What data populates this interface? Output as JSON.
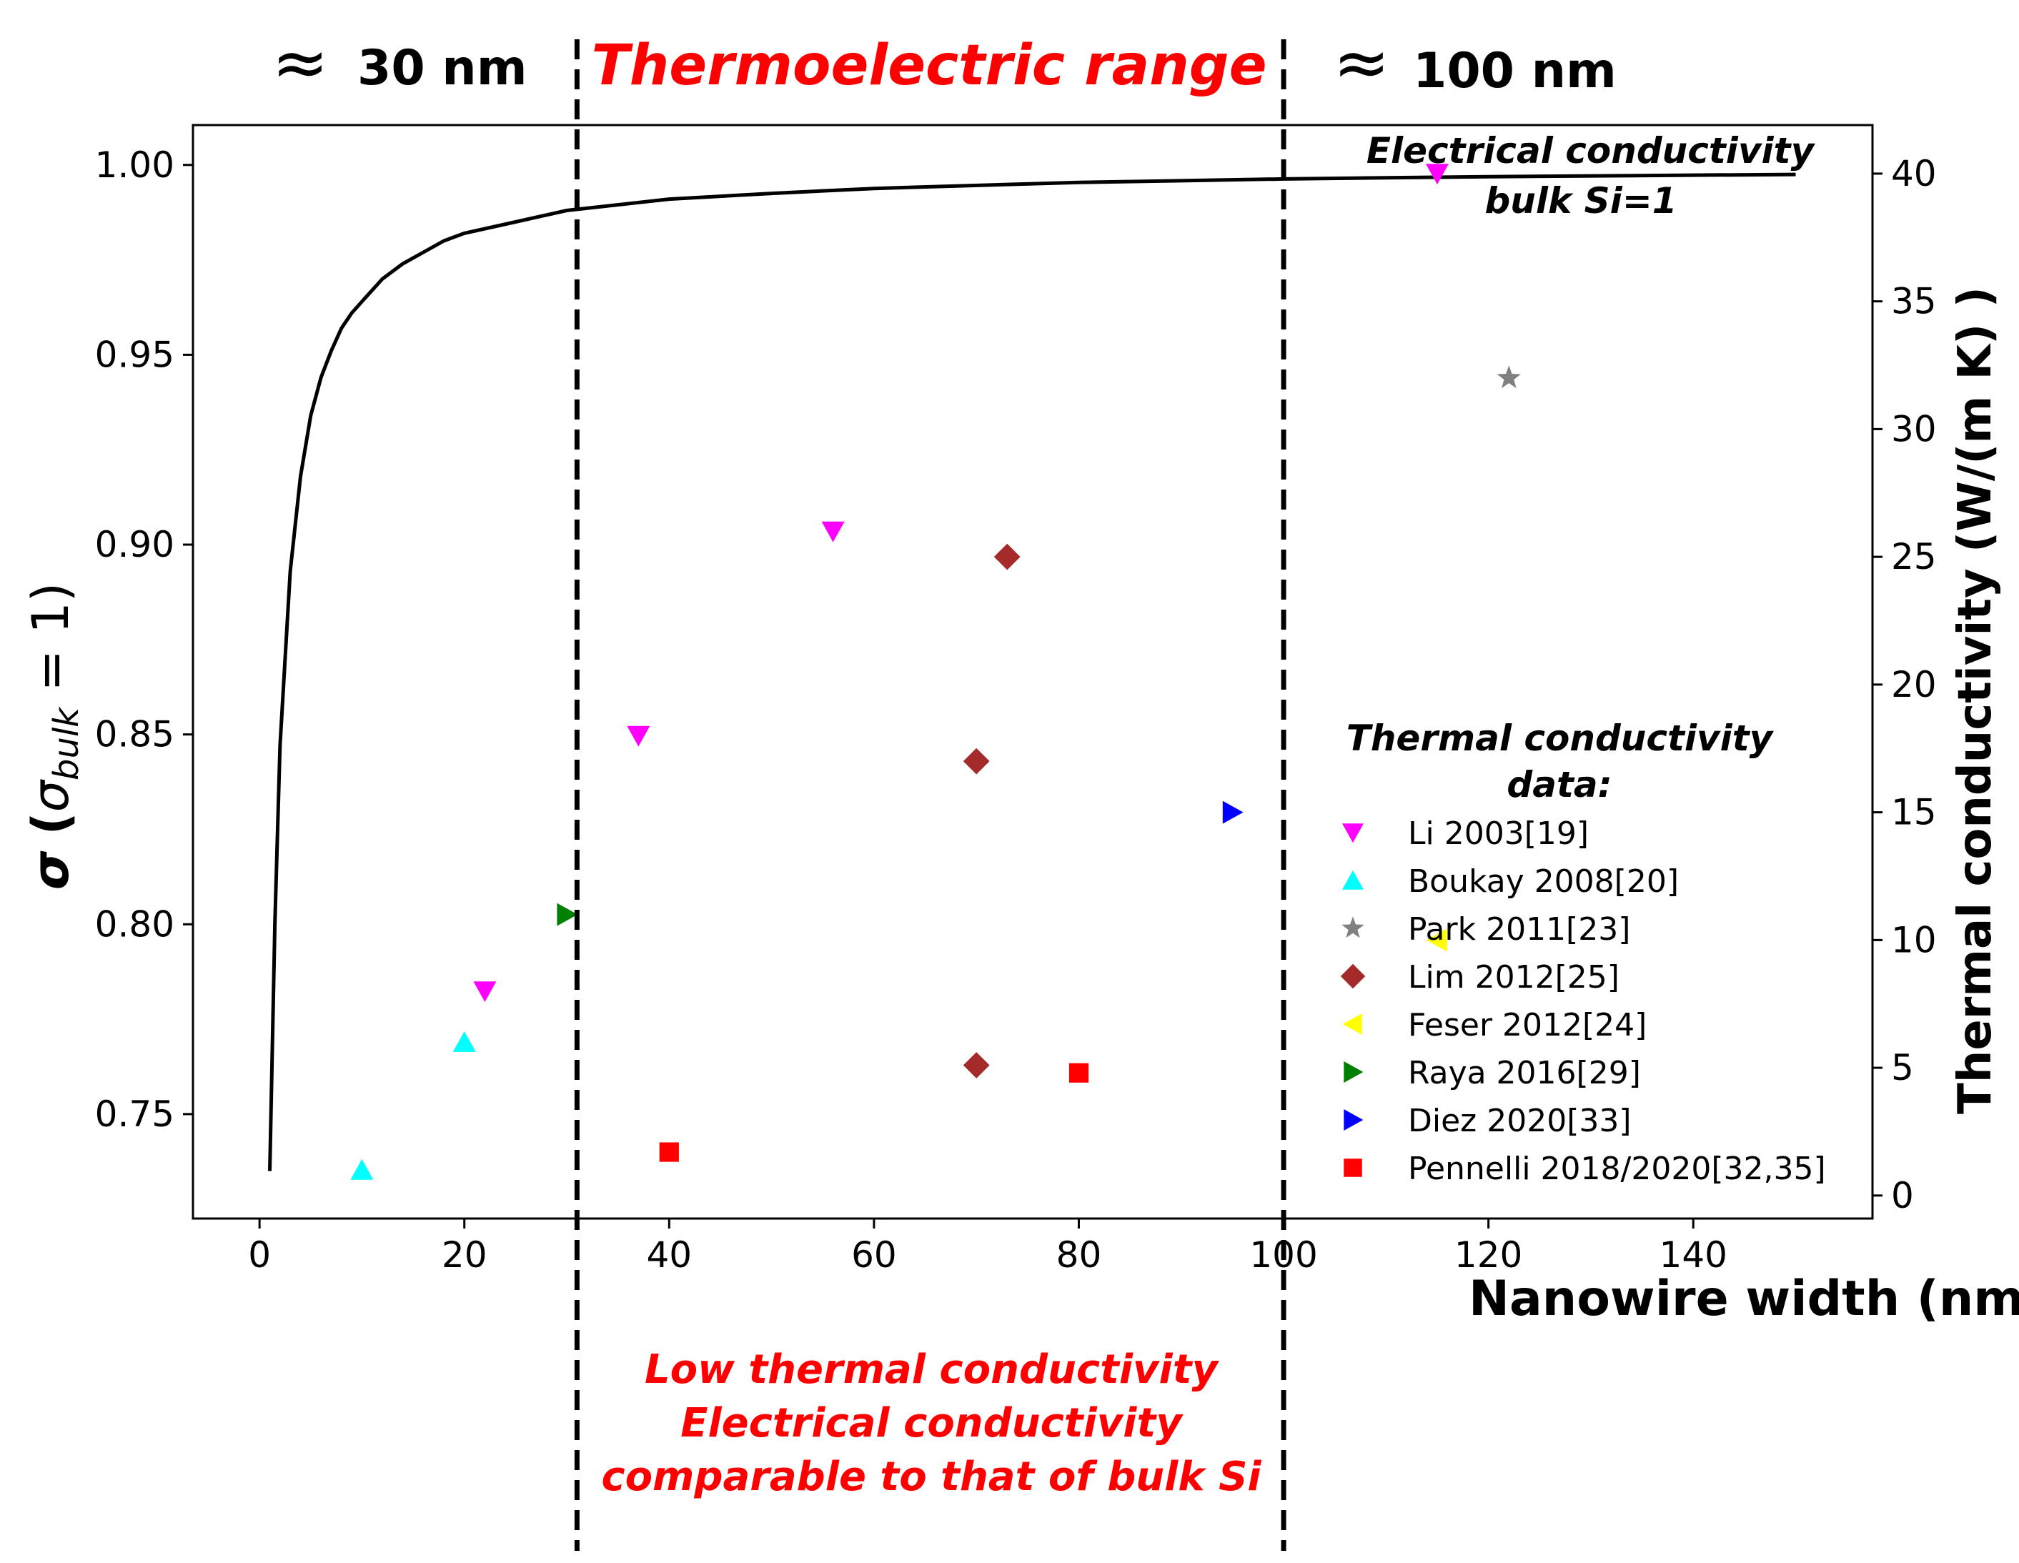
{
  "chart_data": {
    "type": "scatter",
    "title": "",
    "xlabel": "Nanowire width (nm)",
    "ylabel_left": "σ (σ_bulk = 1)",
    "ylabel_left_parts": {
      "sigma": "σ",
      "open": "(",
      "sub_sigma": "σ",
      "subscript": "bulk",
      "rest": "= 1)"
    },
    "ylabel_right": "Thermal conductivity (W/(m K) )",
    "xlim": [
      -6.5,
      157.5
    ],
    "ylim_left": [
      0.7225,
      1.0105
    ],
    "ylim_right": [
      -0.9,
      41.9
    ],
    "x_ticks": [
      0,
      20,
      40,
      60,
      80,
      100,
      120,
      140
    ],
    "x_tick_labels": [
      "0",
      "20",
      "40",
      "60",
      "80",
      "100",
      "120",
      "140"
    ],
    "y_left_ticks": [
      0.75,
      0.8,
      0.85,
      0.9,
      0.95,
      1.0
    ],
    "y_left_tick_labels": [
      "0.75",
      "0.80",
      "0.85",
      "0.90",
      "0.95",
      "1.00"
    ],
    "y_right_ticks": [
      0,
      5,
      10,
      15,
      20,
      25,
      30,
      35,
      40
    ],
    "y_right_tick_labels": [
      "0",
      "5",
      "10",
      "15",
      "20",
      "25",
      "30",
      "35",
      "40"
    ],
    "grid": false,
    "curve": {
      "name": "Electrical conductivity (bulk Si = 1)",
      "axis": "left",
      "color": "#000000",
      "x": [
        1,
        1.5,
        2,
        3,
        4,
        5,
        6,
        7,
        8,
        9,
        10,
        12,
        14,
        16,
        18,
        20,
        25,
        30,
        40,
        50,
        60,
        80,
        100,
        120,
        150
      ],
      "y": [
        0.735,
        0.8,
        0.847,
        0.893,
        0.918,
        0.934,
        0.944,
        0.951,
        0.957,
        0.961,
        0.964,
        0.97,
        0.974,
        0.977,
        0.98,
        0.982,
        0.985,
        0.988,
        0.991,
        0.9925,
        0.9938,
        0.9954,
        0.9963,
        0.9969,
        0.9975
      ]
    },
    "series": [
      {
        "name": "Li 2003[19]",
        "marker": "triangle-down",
        "color": "#ff00ff",
        "axis": "right",
        "points": [
          {
            "x": 22,
            "y": 8.0
          },
          {
            "x": 37,
            "y": 18.0
          },
          {
            "x": 56,
            "y": 26.0
          },
          {
            "x": 115,
            "y": 40.0
          }
        ]
      },
      {
        "name": "Boukay 2008[20]",
        "marker": "triangle-up",
        "color": "#00ffff",
        "axis": "right",
        "points": [
          {
            "x": 10,
            "y": 1.0
          },
          {
            "x": 20,
            "y": 6.0
          }
        ]
      },
      {
        "name": "Park 2011[23]",
        "marker": "star",
        "color": "#808080",
        "axis": "right",
        "points": [
          {
            "x": 122,
            "y": 32.0
          }
        ]
      },
      {
        "name": "Lim 2012[25]",
        "marker": "diamond",
        "color": "#a52a2a",
        "axis": "right",
        "points": [
          {
            "x": 73,
            "y": 25.0
          },
          {
            "x": 70,
            "y": 17.0
          },
          {
            "x": 70,
            "y": 5.1
          }
        ]
      },
      {
        "name": "Feser 2012[24]",
        "marker": "triangle-left",
        "color": "#ffff00",
        "axis": "right",
        "points": [
          {
            "x": 115,
            "y": 10.0
          }
        ]
      },
      {
        "name": "Raya 2016[29]",
        "marker": "triangle-right",
        "color": "#008000",
        "axis": "right",
        "points": [
          {
            "x": 30,
            "y": 11.0
          }
        ]
      },
      {
        "name": "Diez 2020[33]",
        "marker": "triangle-right",
        "color": "#0000ff",
        "axis": "right",
        "points": [
          {
            "x": 95,
            "y": 15.0
          }
        ]
      },
      {
        "name": "Pennelli 2018/2020[32,35]",
        "marker": "square",
        "color": "#ff0000",
        "axis": "right",
        "points": [
          {
            "x": 40,
            "y": 1.7
          },
          {
            "x": 80,
            "y": 4.8
          }
        ]
      }
    ],
    "vlines": [
      31,
      100
    ],
    "legend": {
      "title": "Thermal conductivity data:",
      "title_lines": [
        "Thermal conductivity",
        "data:"
      ],
      "position": "lower-right"
    },
    "annotations": {
      "approx_symbol": "≈",
      "left_label": "30 nm",
      "middle_title": "Thermoelectric range",
      "right_label": "100 nm",
      "curve_note_lines": [
        "Electrical conductivity",
        "bulk Si=1"
      ],
      "bottom_note_lines": [
        "Low thermal conductivity",
        "Electrical conductivity",
        "comparable to that of bulk Si"
      ]
    }
  },
  "colors": {
    "highlight": "#ff0000",
    "text": "#000000"
  }
}
